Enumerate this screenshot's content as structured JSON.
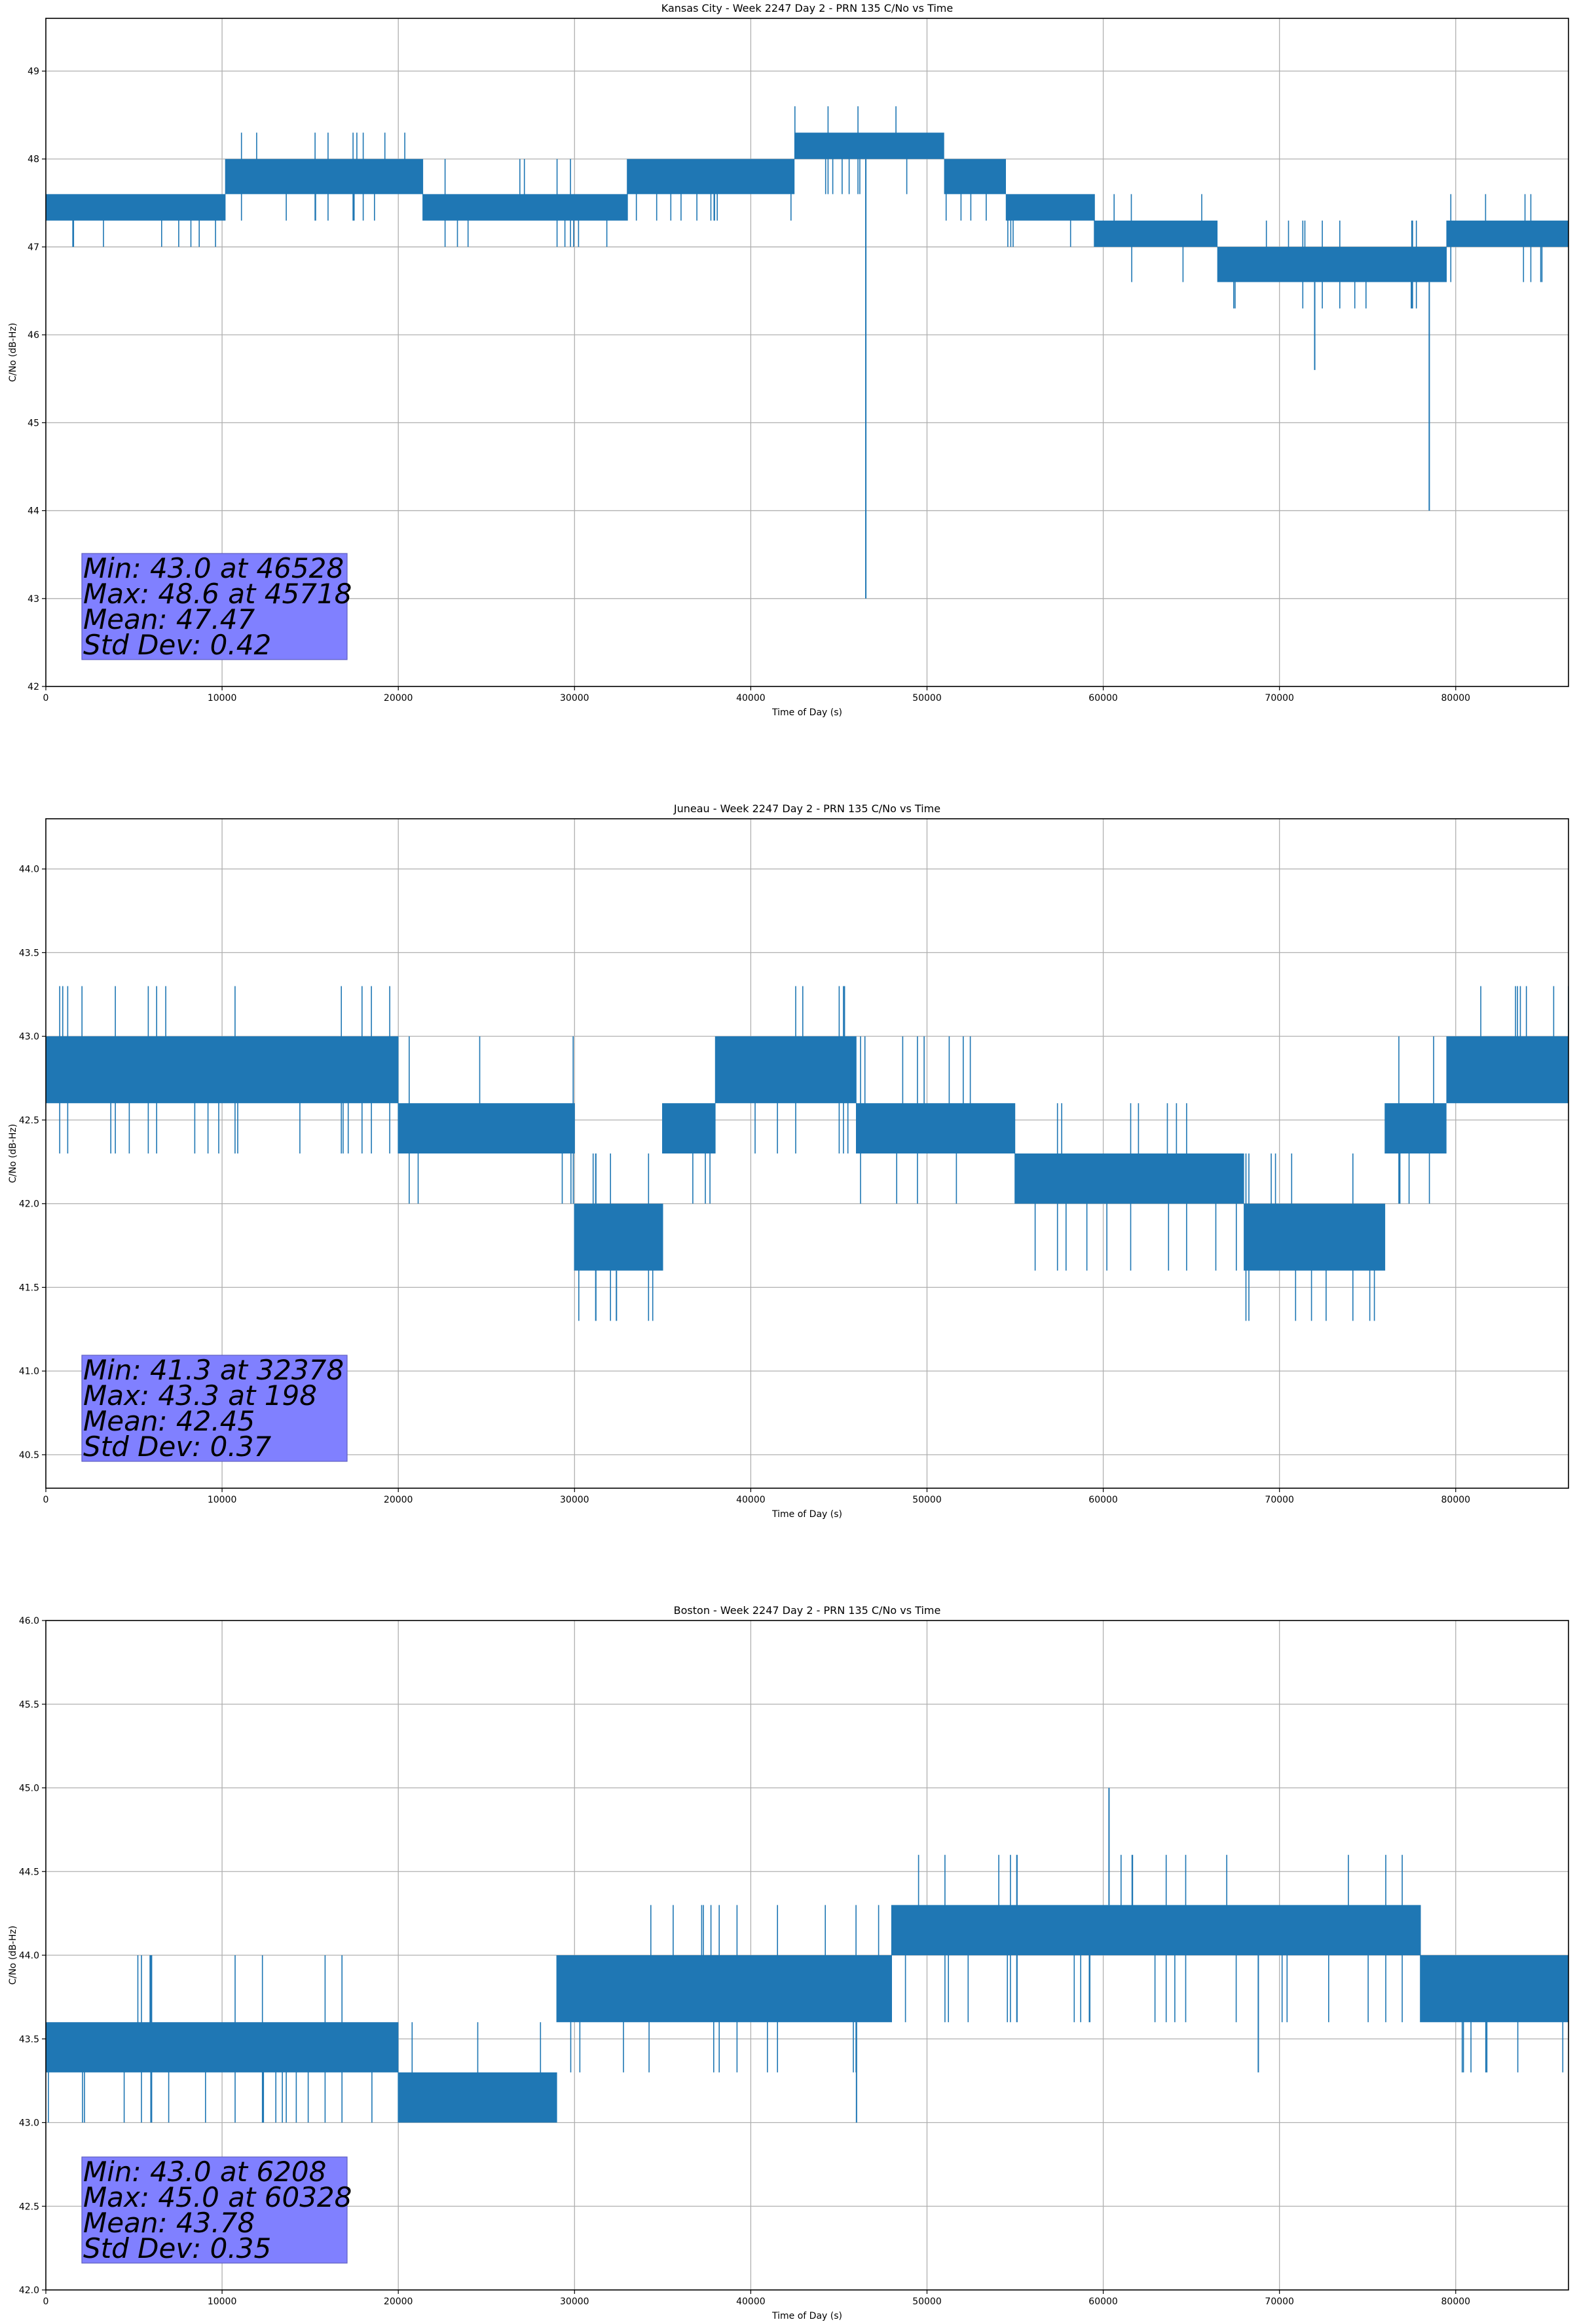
{
  "chart_data": [
    {
      "type": "line",
      "title": "Kansas City - Week 2247 Day 2 - PRN 135 C/No vs Time",
      "xlabel": "Time of Day (s)",
      "ylabel": "C/No (dB-Hz)",
      "xlim": [
        0,
        86400
      ],
      "ylim": [
        42.0,
        49.6
      ],
      "grid": true,
      "color": "#1f77b4",
      "x_ticks": [
        0,
        10000,
        20000,
        30000,
        40000,
        50000,
        60000,
        70000,
        80000
      ],
      "y_ticks": [
        42,
        43,
        44,
        45,
        46,
        47,
        48,
        49
      ],
      "y_tick_labels": [
        "42",
        "43",
        "44",
        "45",
        "46",
        "47",
        "48",
        "49"
      ],
      "stats": [
        "Min: 43.0 at 46528",
        "Max: 48.6 at 45718",
        "Mean: 47.47",
        "Std Dev: 0.42"
      ],
      "series": [
        {
          "name": "PRN 135",
          "bands": [
            {
              "x": [
                0,
                10200
              ],
              "low": 47.3,
              "high": 47.6,
              "dips": [
                47.0
              ],
              "spikes": []
            },
            {
              "x": [
                10200,
                21400
              ],
              "low": 47.6,
              "high": 48.0,
              "dips": [
                47.3
              ],
              "spikes": [
                48.3
              ]
            },
            {
              "x": [
                21400,
                33000
              ],
              "low": 47.3,
              "high": 47.6,
              "dips": [
                47.0
              ],
              "spikes": [
                48.0
              ]
            },
            {
              "x": [
                33000,
                42500
              ],
              "low": 47.6,
              "high": 48.0,
              "dips": [
                47.3
              ],
              "spikes": []
            },
            {
              "x": [
                42500,
                51000
              ],
              "low": 48.0,
              "high": 48.3,
              "dips": [
                47.6
              ],
              "spikes": [
                48.6
              ]
            },
            {
              "x": [
                51000,
                54500
              ],
              "low": 47.6,
              "high": 48.0,
              "dips": [
                47.3
              ],
              "spikes": []
            },
            {
              "x": [
                54500,
                59500
              ],
              "low": 47.3,
              "high": 47.6,
              "dips": [
                47.0
              ],
              "spikes": []
            },
            {
              "x": [
                59500,
                66500
              ],
              "low": 47.0,
              "high": 47.3,
              "dips": [
                46.6
              ],
              "spikes": [
                47.6
              ]
            },
            {
              "x": [
                66500,
                79500
              ],
              "low": 46.6,
              "high": 47.0,
              "dips": [
                46.3
              ],
              "spikes": [
                47.3
              ]
            },
            {
              "x": [
                79500,
                86400
              ],
              "low": 47.0,
              "high": 47.3,
              "dips": [
                46.6
              ],
              "spikes": [
                47.6
              ]
            }
          ],
          "outliers": [
            {
              "x": 46528,
              "y": 43.0
            },
            {
              "x": 72000,
              "y": 45.6
            },
            {
              "x": 78500,
              "y": 44.0
            }
          ]
        }
      ]
    },
    {
      "type": "line",
      "title": "Juneau - Week 2247 Day 2 - PRN 135 C/No vs Time",
      "xlabel": "Time of Day (s)",
      "ylabel": "C/No (dB-Hz)",
      "xlim": [
        0,
        86400
      ],
      "ylim": [
        40.3,
        44.3
      ],
      "grid": true,
      "color": "#1f77b4",
      "x_ticks": [
        0,
        10000,
        20000,
        30000,
        40000,
        50000,
        60000,
        70000,
        80000
      ],
      "y_ticks": [
        40.5,
        41.0,
        41.5,
        42.0,
        42.5,
        43.0,
        43.5,
        44.0
      ],
      "y_tick_labels": [
        "40.5",
        "41.0",
        "41.5",
        "42.0",
        "42.5",
        "43.0",
        "43.5",
        "44.0"
      ],
      "stats": [
        "Min: 41.3 at 32378",
        "Max: 43.3 at 198",
        "Mean: 42.45",
        "Std Dev: 0.37"
      ],
      "series": [
        {
          "name": "PRN 135",
          "bands": [
            {
              "x": [
                0,
                20000
              ],
              "low": 42.6,
              "high": 43.0,
              "dips": [
                42.3
              ],
              "spikes": [
                43.3
              ]
            },
            {
              "x": [
                20000,
                30000
              ],
              "low": 42.3,
              "high": 42.6,
              "dips": [
                42.0
              ],
              "spikes": [
                43.0
              ]
            },
            {
              "x": [
                30000,
                35000
              ],
              "low": 41.6,
              "high": 42.0,
              "dips": [
                41.3
              ],
              "spikes": [
                42.3
              ]
            },
            {
              "x": [
                35000,
                38000
              ],
              "low": 42.3,
              "high": 42.6,
              "dips": [
                42.0
              ],
              "spikes": []
            },
            {
              "x": [
                38000,
                46000
              ],
              "low": 42.6,
              "high": 43.0,
              "dips": [
                42.3
              ],
              "spikes": [
                43.3
              ]
            },
            {
              "x": [
                46000,
                55000
              ],
              "low": 42.3,
              "high": 42.6,
              "dips": [
                42.0
              ],
              "spikes": [
                43.0
              ]
            },
            {
              "x": [
                55000,
                68000
              ],
              "low": 42.0,
              "high": 42.3,
              "dips": [
                41.6
              ],
              "spikes": [
                42.6
              ]
            },
            {
              "x": [
                68000,
                76000
              ],
              "low": 41.6,
              "high": 42.0,
              "dips": [
                41.3
              ],
              "spikes": [
                42.3
              ]
            },
            {
              "x": [
                76000,
                79500
              ],
              "low": 42.3,
              "high": 42.6,
              "dips": [
                42.0
              ],
              "spikes": [
                43.0
              ]
            },
            {
              "x": [
                79500,
                86400
              ],
              "low": 42.6,
              "high": 43.0,
              "dips": [
                42.6
              ],
              "spikes": [
                43.3
              ]
            }
          ],
          "outliers": [
            {
              "x": 32378,
              "y": 41.3
            }
          ]
        }
      ]
    },
    {
      "type": "line",
      "title": "Boston - Week 2247 Day 2 - PRN 135 C/No vs Time",
      "xlabel": "Time of Day (s)",
      "ylabel": "C/No (dB-Hz)",
      "xlim": [
        0,
        86400
      ],
      "ylim": [
        42.0,
        46.0
      ],
      "grid": true,
      "color": "#1f77b4",
      "x_ticks": [
        0,
        10000,
        20000,
        30000,
        40000,
        50000,
        60000,
        70000,
        80000
      ],
      "y_ticks": [
        42.0,
        42.5,
        43.0,
        43.5,
        44.0,
        44.5,
        45.0,
        45.5,
        46.0
      ],
      "y_tick_labels": [
        "42.0",
        "42.5",
        "43.0",
        "43.5",
        "44.0",
        "44.5",
        "45.0",
        "45.5",
        "46.0"
      ],
      "stats": [
        "Min: 43.0 at 6208",
        "Max: 45.0 at 60328",
        "Mean: 43.78",
        "Std Dev: 0.35"
      ],
      "series": [
        {
          "name": "PRN 135",
          "bands": [
            {
              "x": [
                0,
                20000
              ],
              "low": 43.3,
              "high": 43.6,
              "dips": [
                43.0
              ],
              "spikes": [
                44.0
              ]
            },
            {
              "x": [
                20000,
                29000
              ],
              "low": 43.0,
              "high": 43.3,
              "dips": [
                43.0
              ],
              "spikes": [
                43.6
              ]
            },
            {
              "x": [
                29000,
                33000
              ],
              "low": 43.6,
              "high": 44.0,
              "dips": [
                43.3
              ],
              "spikes": []
            },
            {
              "x": [
                33000,
                48000
              ],
              "low": 43.6,
              "high": 44.0,
              "dips": [
                43.3
              ],
              "spikes": [
                44.3
              ]
            },
            {
              "x": [
                48000,
                57000
              ],
              "low": 44.0,
              "high": 44.3,
              "dips": [
                43.6
              ],
              "spikes": [
                44.6
              ]
            },
            {
              "x": [
                57000,
                78000
              ],
              "low": 44.0,
              "high": 44.3,
              "dips": [
                43.6
              ],
              "spikes": [
                44.6
              ]
            },
            {
              "x": [
                78000,
                86400
              ],
              "low": 43.6,
              "high": 44.0,
              "dips": [
                43.3
              ],
              "spikes": [
                44.0
              ]
            }
          ],
          "outliers": [
            {
              "x": 46000,
              "y": 43.0
            },
            {
              "x": 60328,
              "y": 45.0
            },
            {
              "x": 68800,
              "y": 43.3
            }
          ]
        }
      ]
    }
  ]
}
